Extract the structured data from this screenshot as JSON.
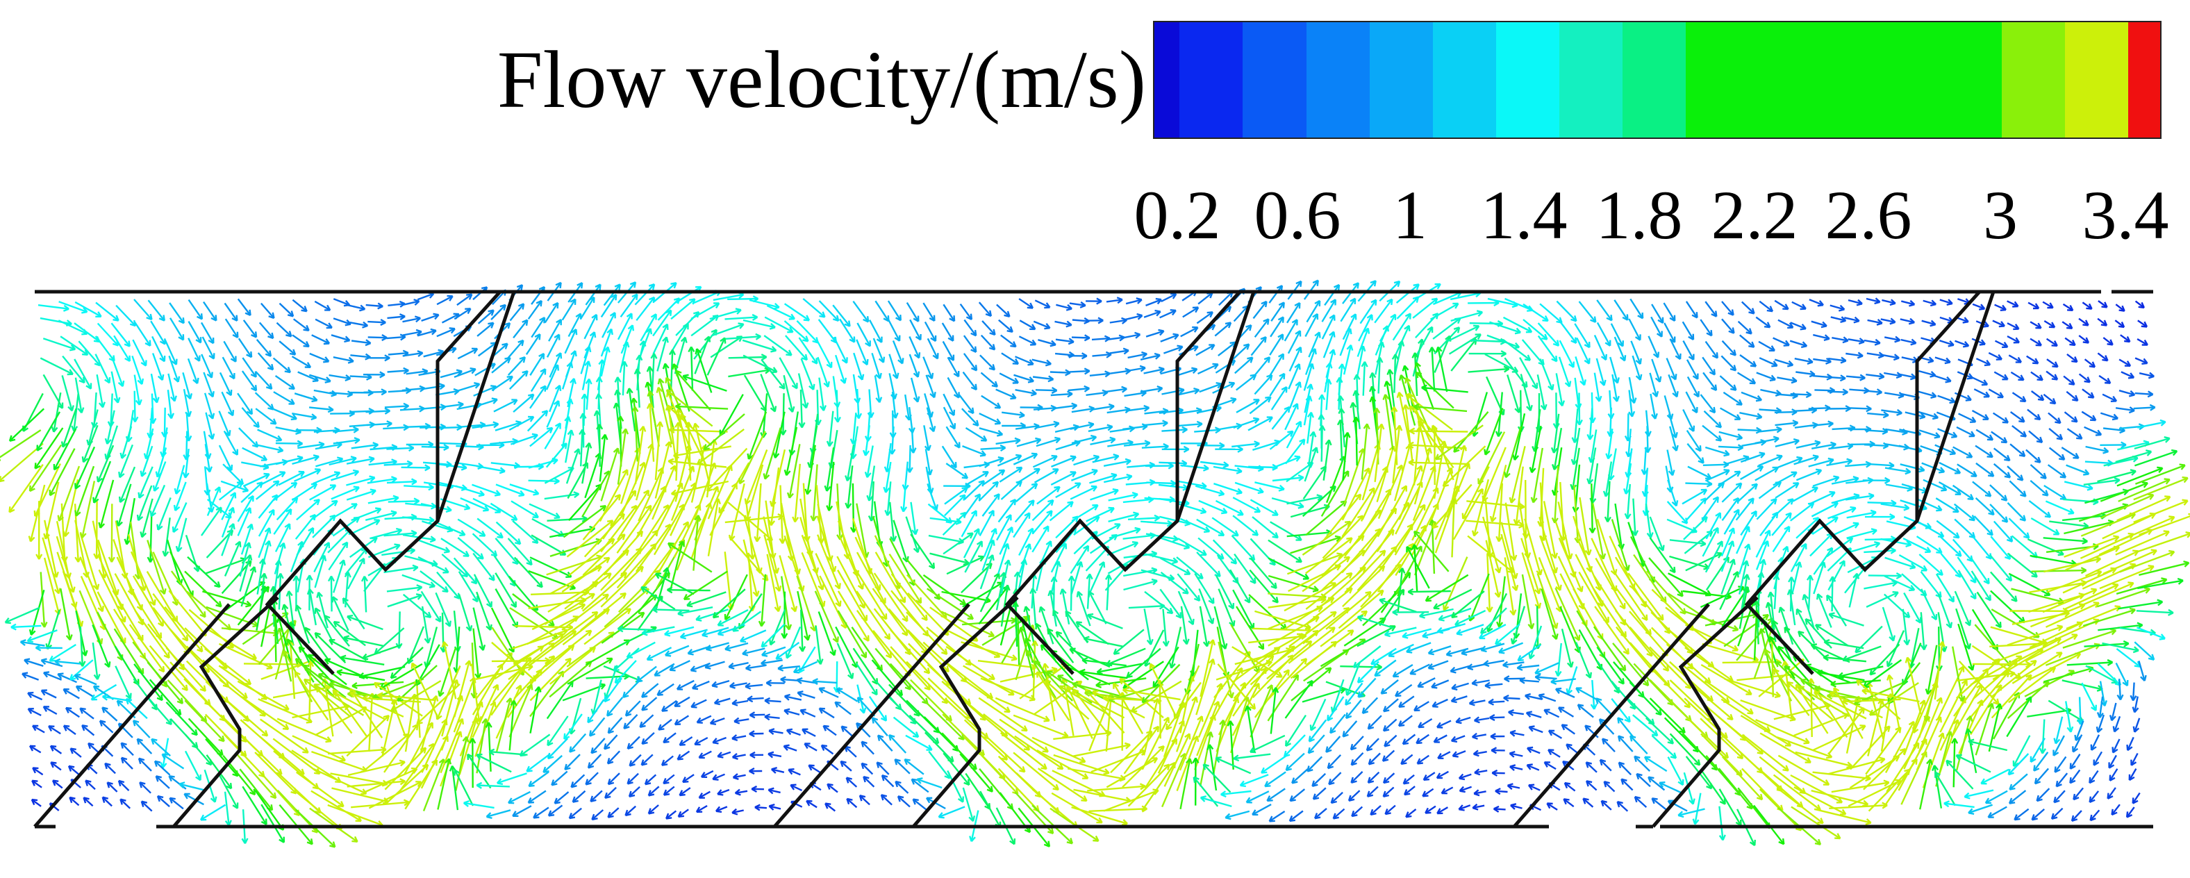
{
  "legend": {
    "title": "Flow velocity/(m/s)",
    "ticks": [
      "0.2",
      "0.6",
      "1",
      "1.4",
      "1.8",
      "2.2",
      "2.6",
      "3",
      "3.4"
    ],
    "bands": [
      {
        "color": "#0a0ad8",
        "weight": 0.4
      },
      {
        "color": "#0a28f0",
        "weight": 1
      },
      {
        "color": "#0a5af5",
        "weight": 1
      },
      {
        "color": "#0a82f8",
        "weight": 1
      },
      {
        "color": "#0aa8f8",
        "weight": 1
      },
      {
        "color": "#0ad0f5",
        "weight": 1
      },
      {
        "color": "#0af8f8",
        "weight": 1
      },
      {
        "color": "#14f0c0",
        "weight": 1
      },
      {
        "color": "#0af084",
        "weight": 1
      },
      {
        "color": "#0af00a",
        "weight": 5
      },
      {
        "color": "#8af00a",
        "weight": 1
      },
      {
        "color": "#ccf00a",
        "weight": 1
      },
      {
        "color": "#f01010",
        "weight": 0.5
      }
    ]
  },
  "palette": {
    "low": "#0a1ee0",
    "mid": "#0af8f8",
    "high": "#0af00a",
    "peak": "#f01010",
    "wall": "#111111"
  }
}
